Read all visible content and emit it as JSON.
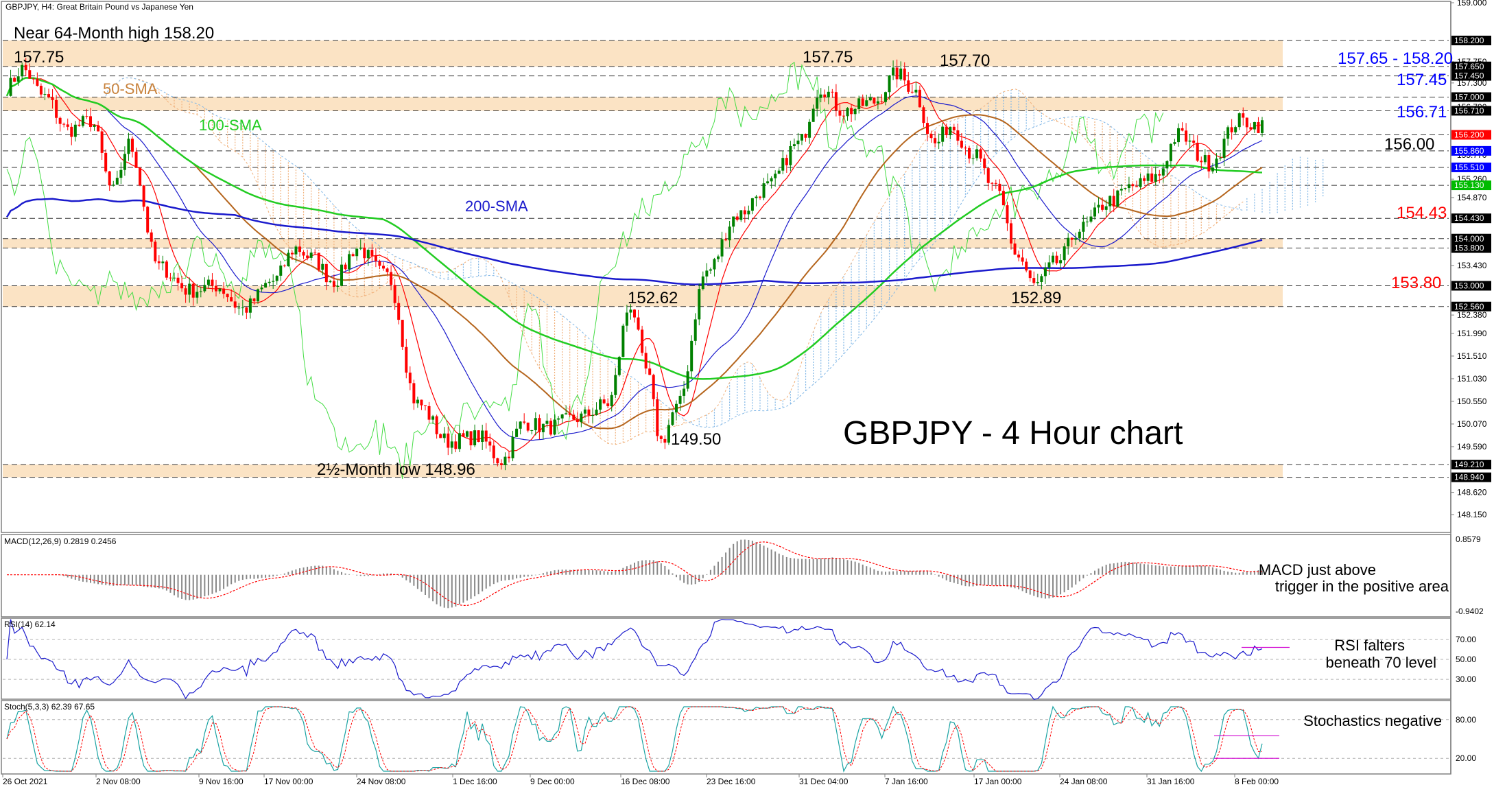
{
  "chart_data": {
    "type": "line",
    "title": "GBPJPY - 4 Hour chart",
    "header": "GBPJPY, H4:  Great Britain Pound vs Japanese Yen",
    "x_ticks": [
      "26 Oct 2021",
      "2 Nov 08:00",
      "9 Nov 16:00",
      "17 Nov 00:00",
      "24 Nov 08:00",
      "1 Dec 16:00",
      "9 Dec 00:00",
      "16 Dec 08:00",
      "23 Dec 16:00",
      "31 Dec 04:00",
      "7 Jan 16:00",
      "17 Jan 00:00",
      "24 Jan 08:00",
      "31 Jan 16:00",
      "8 Feb 00:00"
    ],
    "price_axis": {
      "ylim": [
        147.8,
        159.0
      ],
      "grid_ticks": [
        159.0,
        157.75,
        157.3,
        156.79,
        155.77,
        155.26,
        154.87,
        153.43,
        152.38,
        151.99,
        151.51,
        151.03,
        150.55,
        150.07,
        149.59,
        148.62,
        148.15
      ],
      "grid_labels": [
        "159.000",
        "157.750",
        "157.300",
        "156.790",
        "155.770",
        "155.260",
        "154.870",
        "153.430",
        "152.380",
        "151.990",
        "151.510",
        "151.030",
        "150.550",
        "150.070",
        "149.590",
        "148.620",
        "148.150"
      ],
      "level_ticks": [
        158.2,
        157.65,
        157.45,
        157.0,
        156.71,
        156.2,
        155.86,
        155.51,
        155.13,
        154.43,
        154.0,
        153.8,
        153.0,
        152.56,
        149.21,
        148.94
      ],
      "level_labels": [
        "158.200",
        "157.650",
        "157.450",
        "157.000",
        "156.710",
        "156.200",
        "155.860",
        "155.510",
        "155.130",
        "154.430",
        "154.000",
        "153.800",
        "153.000",
        "152.560",
        "149.210",
        "148.940"
      ],
      "level_colors": [
        "#000000",
        "#000000",
        "#000000",
        "#000000",
        "#000000",
        "#ff0000",
        "#0000ff",
        "#0000ff",
        "#00bb00",
        "#000000",
        "#000000",
        "#000000",
        "#000000",
        "#000000",
        "#000000",
        "#000000"
      ]
    },
    "bands": [
      {
        "from": 157.65,
        "to": 158.2
      },
      {
        "from": 156.71,
        "to": 157.0
      },
      {
        "from": 153.8,
        "to": 154.0
      },
      {
        "from": 152.56,
        "to": 153.0
      },
      {
        "from": 148.94,
        "to": 149.21
      }
    ],
    "price_series": {
      "n": 300,
      "anchors": [
        [
          0,
          157.2
        ],
        [
          4,
          157.6
        ],
        [
          10,
          157.0
        ],
        [
          16,
          156.3
        ],
        [
          22,
          156.5
        ],
        [
          28,
          155.0
        ],
        [
          32,
          156.0
        ],
        [
          40,
          153.4
        ],
        [
          48,
          152.9
        ],
        [
          55,
          153.0
        ],
        [
          62,
          152.5
        ],
        [
          70,
          153.1
        ],
        [
          76,
          153.8
        ],
        [
          80,
          153.6
        ],
        [
          86,
          153.1
        ],
        [
          92,
          153.8
        ],
        [
          100,
          153.2
        ],
        [
          108,
          150.5
        ],
        [
          116,
          149.7
        ],
        [
          124,
          149.8
        ],
        [
          130,
          149.3
        ],
        [
          136,
          150.1
        ],
        [
          142,
          150.0
        ],
        [
          150,
          150.2
        ],
        [
          158,
          150.5
        ],
        [
          164,
          152.6
        ],
        [
          168,
          151.2
        ],
        [
          172,
          149.7
        ],
        [
          176,
          150.4
        ],
        [
          184,
          153.3
        ],
        [
          192,
          154.5
        ],
        [
          200,
          155.1
        ],
        [
          208,
          156.0
        ],
        [
          214,
          157.2
        ],
        [
          220,
          156.7
        ],
        [
          228,
          156.9
        ],
        [
          234,
          157.5
        ],
        [
          238,
          157.2
        ],
        [
          244,
          156.0
        ],
        [
          248,
          156.4
        ],
        [
          254,
          155.8
        ],
        [
          260,
          155.0
        ],
        [
          266,
          153.6
        ],
        [
          270,
          153.0
        ],
        [
          276,
          153.5
        ],
        [
          282,
          154.2
        ],
        [
          290,
          154.8
        ],
        [
          296,
          155.1
        ],
        [
          302,
          155.3
        ],
        [
          308,
          156.2
        ],
        [
          316,
          155.6
        ],
        [
          324,
          156.5
        ],
        [
          330,
          156.4
        ]
      ]
    },
    "legend_labels": [
      "50-SMA",
      "100-SMA",
      "200-SMA"
    ],
    "annotations": [
      {
        "text": "Near 64-Month high 158.20",
        "color": "#000000"
      },
      {
        "text": "157.75",
        "color": "#000000"
      },
      {
        "text": "157.75",
        "color": "#000000"
      },
      {
        "text": "157.70",
        "color": "#000000"
      },
      {
        "text": "152.62",
        "color": "#000000"
      },
      {
        "text": "152.89",
        "color": "#000000"
      },
      {
        "text": "149.50",
        "color": "#000000"
      },
      {
        "text": "2½-Month low 148.96",
        "color": "#000000"
      },
      {
        "text": "157.65 - 158.20",
        "color": "#0000ff"
      },
      {
        "text": "157.45",
        "color": "#0000ff"
      },
      {
        "text": "156.71",
        "color": "#0000ff"
      },
      {
        "text": "156.00",
        "color": "#000000"
      },
      {
        "text": "154.43",
        "color": "#ff0000"
      },
      {
        "text": "153.80",
        "color": "#ff0000"
      }
    ],
    "macd": {
      "label": "MACD(12,26,9) 0.2819 0.2456",
      "ylim": [
        -0.9402,
        0.8579
      ],
      "tick_labels": [
        "0.8579",
        "-0.9402"
      ],
      "note_lines": [
        "MACD just above",
        "trigger in the positive area"
      ]
    },
    "rsi": {
      "label": "RSI(14) 62.14",
      "ylim": [
        15,
        85
      ],
      "tick_values": [
        70,
        50,
        30
      ],
      "tick_labels": [
        "70.00",
        "50.00",
        "30.00"
      ],
      "note_lines": [
        "RSI falters",
        "beneath 70 level"
      ]
    },
    "stoch": {
      "label": "Stoch(5,3,3) 62.39 67.65",
      "ylim": [
        0,
        100
      ],
      "tick_values": [
        80,
        20
      ],
      "tick_labels": [
        "80.00",
        "20.00"
      ],
      "note_lines": [
        "Stochastics negative"
      ]
    },
    "colors": {
      "price_up": "#008000",
      "price_down": "#ff0000",
      "sma50": "#b5651d",
      "sma100": "#22cc22",
      "sma200": "#1a1acc",
      "band": "#fbe3c4",
      "cloud_blue": "#7fb6e6",
      "cloud_orange": "#f0b07a",
      "macd_hist": "#888888",
      "macd_signal": "#ff0000",
      "rsi_line": "#1a1acc",
      "stoch_main": "#1aa3a3",
      "stoch_signal": "#ff0000",
      "magenta": "#d000d0"
    }
  }
}
